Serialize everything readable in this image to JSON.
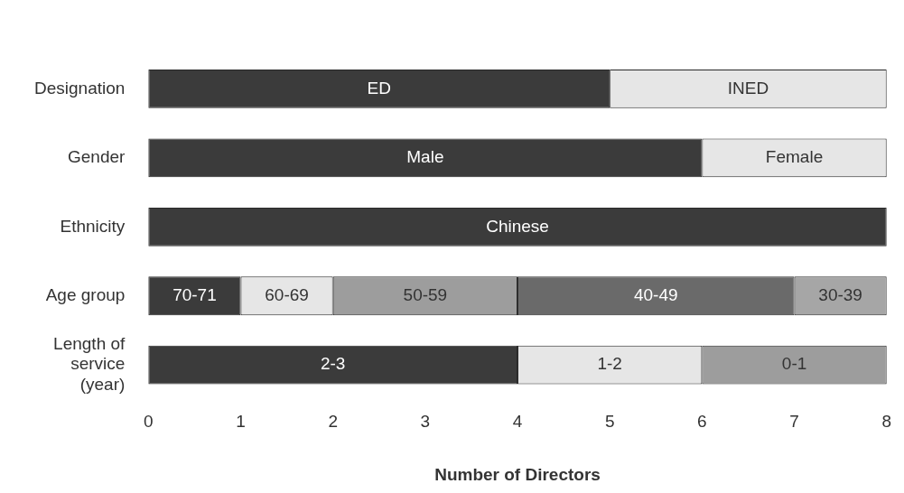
{
  "chart_data": {
    "type": "bar",
    "orientation": "horizontal",
    "stacked": true,
    "xlabel": "Number of Directors",
    "categories": [
      "Designation",
      "Gender",
      "Ethnicity",
      "Age group",
      "Length of service (year)"
    ],
    "series": [
      {
        "colors": [
          "#3b3b3b",
          "#3b3b3b",
          "#3b3b3b",
          "#3b3b3b",
          "#3b3b3b"
        ],
        "values": [
          5,
          6,
          8,
          1,
          4
        ],
        "value_labels": [
          "ED",
          "Male",
          "Chinese",
          "70-71",
          "2-3"
        ]
      },
      {
        "colors": [
          "#e6e6e6",
          "#e6e6e6",
          null,
          "#e6e6e6",
          "#e6e6e6"
        ],
        "values": [
          3,
          2,
          null,
          1,
          2
        ],
        "value_labels": [
          "INED",
          "Female",
          null,
          "60-69",
          "1-2"
        ]
      },
      {
        "colors": [
          null,
          null,
          null,
          "#9d9d9d",
          "#9d9d9d"
        ],
        "values": [
          null,
          null,
          null,
          2,
          2
        ],
        "value_labels": [
          null,
          null,
          null,
          "50-59",
          "0-1"
        ]
      },
      {
        "colors": [
          null,
          null,
          null,
          "#6a6a6a",
          null
        ],
        "values": [
          null,
          null,
          null,
          3,
          null
        ],
        "value_labels": [
          null,
          null,
          null,
          "40-49",
          null
        ]
      },
      {
        "colors": [
          null,
          null,
          null,
          "#a6a6a6",
          null
        ],
        "values": [
          null,
          null,
          null,
          1,
          null
        ],
        "value_labels": [
          null,
          null,
          null,
          "30-39",
          null
        ]
      }
    ],
    "xlim": [
      0,
      8
    ],
    "xticks": [
      0,
      1,
      2,
      3,
      4,
      5,
      6,
      7,
      8
    ],
    "grid": false,
    "legend": false
  }
}
